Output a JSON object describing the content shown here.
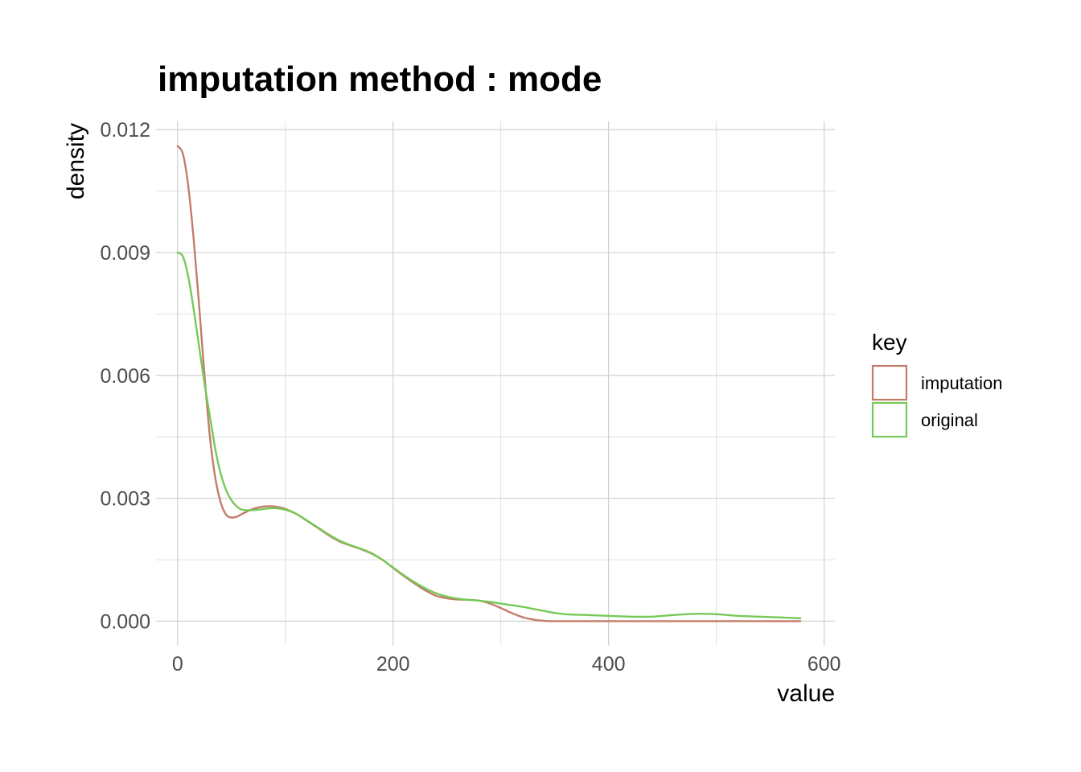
{
  "chart_data": {
    "type": "line",
    "title": "imputation method : mode",
    "xlabel": "value",
    "ylabel": "density",
    "xlim": [
      -20,
      610
    ],
    "ylim": [
      -0.0006,
      0.0122
    ],
    "x_ticks": [
      0,
      200,
      400,
      600
    ],
    "y_ticks": [
      0.0,
      0.003,
      0.006,
      0.009,
      0.012
    ],
    "x_tick_labels": [
      "0",
      "200",
      "400",
      "600"
    ],
    "y_tick_labels": [
      "0.000",
      "0.003",
      "0.006",
      "0.009",
      "0.012"
    ],
    "grid": true,
    "legend": {
      "title": "key",
      "position": "right"
    },
    "series": [
      {
        "name": "imputation",
        "color": "#c47c6a",
        "points": [
          [
            0,
            0.0116
          ],
          [
            5,
            0.0114
          ],
          [
            10,
            0.0106
          ],
          [
            15,
            0.0093
          ],
          [
            20,
            0.0077
          ],
          [
            25,
            0.006
          ],
          [
            30,
            0.0045
          ],
          [
            35,
            0.0035
          ],
          [
            40,
            0.0029
          ],
          [
            45,
            0.0026
          ],
          [
            50,
            0.00253
          ],
          [
            55,
            0.00255
          ],
          [
            60,
            0.00262
          ],
          [
            70,
            0.00274
          ],
          [
            80,
            0.0028
          ],
          [
            90,
            0.0028
          ],
          [
            100,
            0.00274
          ],
          [
            110,
            0.00262
          ],
          [
            120,
            0.00245
          ],
          [
            130,
            0.00228
          ],
          [
            140,
            0.0021
          ],
          [
            150,
            0.00195
          ],
          [
            160,
            0.00185
          ],
          [
            170,
            0.00176
          ],
          [
            180,
            0.00165
          ],
          [
            190,
            0.0015
          ],
          [
            200,
            0.0013
          ],
          [
            210,
            0.0011
          ],
          [
            220,
            0.00092
          ],
          [
            230,
            0.00075
          ],
          [
            240,
            0.00062
          ],
          [
            250,
            0.00056
          ],
          [
            260,
            0.00053
          ],
          [
            270,
            0.00052
          ],
          [
            280,
            0.0005
          ],
          [
            290,
            0.00043
          ],
          [
            300,
            0.00032
          ],
          [
            310,
            0.0002
          ],
          [
            320,
            0.0001
          ],
          [
            330,
            4e-05
          ],
          [
            340,
            1e-05
          ],
          [
            350,
            0.0
          ],
          [
            400,
            0.0
          ],
          [
            450,
            0.0
          ],
          [
            500,
            0.0
          ],
          [
            550,
            0.0
          ],
          [
            578,
            0.0
          ]
        ]
      },
      {
        "name": "original",
        "color": "#77c957",
        "points": [
          [
            0,
            0.009
          ],
          [
            5,
            0.0089
          ],
          [
            10,
            0.0084
          ],
          [
            15,
            0.0076
          ],
          [
            20,
            0.0067
          ],
          [
            25,
            0.0058
          ],
          [
            30,
            0.005
          ],
          [
            35,
            0.0042
          ],
          [
            40,
            0.0036
          ],
          [
            45,
            0.0032
          ],
          [
            50,
            0.00295
          ],
          [
            55,
            0.0028
          ],
          [
            60,
            0.00272
          ],
          [
            70,
            0.00271
          ],
          [
            80,
            0.00274
          ],
          [
            90,
            0.00276
          ],
          [
            100,
            0.00272
          ],
          [
            110,
            0.00262
          ],
          [
            120,
            0.00246
          ],
          [
            130,
            0.00229
          ],
          [
            140,
            0.00212
          ],
          [
            150,
            0.00197
          ],
          [
            160,
            0.00186
          ],
          [
            170,
            0.00177
          ],
          [
            180,
            0.00166
          ],
          [
            190,
            0.0015
          ],
          [
            200,
            0.00131
          ],
          [
            210,
            0.00112
          ],
          [
            220,
            0.00095
          ],
          [
            230,
            0.0008
          ],
          [
            240,
            0.00068
          ],
          [
            250,
            0.0006
          ],
          [
            260,
            0.00055
          ],
          [
            270,
            0.00052
          ],
          [
            280,
            0.0005
          ],
          [
            290,
            0.00047
          ],
          [
            300,
            0.00043
          ],
          [
            310,
            0.00039
          ],
          [
            320,
            0.00035
          ],
          [
            330,
            0.0003
          ],
          [
            340,
            0.00025
          ],
          [
            350,
            0.0002
          ],
          [
            360,
            0.00017
          ],
          [
            380,
            0.00015
          ],
          [
            400,
            0.00013
          ],
          [
            420,
            0.00011
          ],
          [
            440,
            0.00011
          ],
          [
            460,
            0.00015
          ],
          [
            480,
            0.00018
          ],
          [
            500,
            0.00017
          ],
          [
            520,
            0.00013
          ],
          [
            540,
            0.00011
          ],
          [
            560,
            9e-05
          ],
          [
            578,
            7e-05
          ]
        ]
      }
    ]
  }
}
